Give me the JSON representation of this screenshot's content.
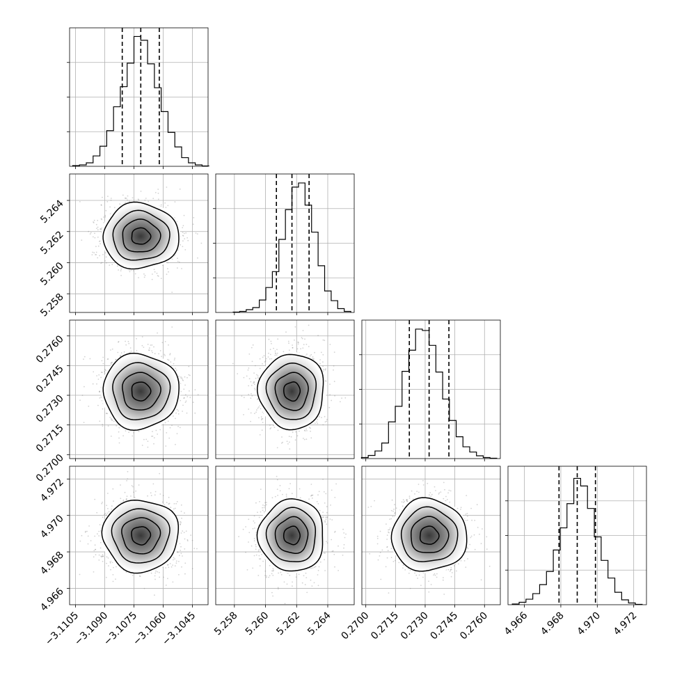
{
  "chart_data": {
    "type": "corner",
    "title": "",
    "parameters": [
      {
        "index": 0,
        "mean": -3.10715,
        "sd": 0.00097,
        "range": [
          -3.1108,
          -3.1037
        ],
        "ticks": [
          -3.1105,
          -3.109,
          -3.1075,
          -3.106,
          -3.1045
        ],
        "tick_labels": [
          "−3.1105",
          "−3.1090",
          "−3.1075",
          "−3.1060",
          "−3.1045"
        ],
        "quantiles": [
          -3.1081,
          -3.10715,
          -3.1062
        ],
        "hist_counts": [
          2,
          4,
          10,
          30,
          58,
          103,
          172,
          230,
          298,
          375,
          364,
          296,
          227,
          158,
          98,
          56,
          25,
          10,
          4,
          1
        ]
      },
      {
        "index": 1,
        "mean": 5.2617,
        "sd": 0.00105,
        "range": [
          5.2568,
          5.2657
        ],
        "ticks": [
          5.258,
          5.26,
          5.262,
          5.264
        ],
        "tick_labels": [
          "5.258",
          "5.260",
          "5.262",
          "5.264"
        ],
        "quantiles": [
          5.2607,
          5.2617,
          5.2628
        ],
        "hist_counts": [
          1,
          3,
          8,
          14,
          36,
          72,
          118,
          211,
          297,
          362,
          374,
          310,
          232,
          135,
          62,
          34,
          11,
          3
        ]
      },
      {
        "index": 2,
        "mean": 0.2732,
        "sd": 0.00095,
        "range": [
          0.2698,
          0.2768
        ],
        "ticks": [
          0.27,
          0.2715,
          0.273,
          0.2745,
          0.276
        ],
        "tick_labels": [
          "0.2700",
          "0.2715",
          "0.2730",
          "0.2745",
          "0.2760"
        ],
        "quantiles": [
          0.2722,
          0.2732,
          0.2742
        ],
        "hist_counts": [
          3,
          9,
          22,
          45,
          106,
          151,
          252,
          313,
          374,
          370,
          327,
          250,
          172,
          110,
          63,
          34,
          19,
          8,
          3,
          1
        ]
      },
      {
        "index": 3,
        "mean": 4.9689,
        "sd": 0.00099,
        "range": [
          4.9651,
          4.9727
        ],
        "ticks": [
          4.966,
          4.968,
          4.97,
          4.972
        ],
        "tick_labels": [
          "4.966",
          "4.968",
          "4.970",
          "4.972"
        ],
        "quantiles": [
          4.9679,
          4.9689,
          4.9699
        ],
        "hist_counts": [
          2,
          7,
          16,
          32,
          58,
          96,
          158,
          222,
          292,
          365,
          343,
          278,
          196,
          128,
          77,
          36,
          14,
          5,
          1
        ]
      }
    ],
    "hist_ylim": [
      0,
      400
    ],
    "hist_yticks": [
      100,
      200,
      300
    ],
    "contour_levels_sigma": [
      0.5,
      1.0,
      1.5,
      2.0
    ],
    "n_scatter_points": 1500,
    "grid": true,
    "colors": {
      "line": "#000000",
      "grid": "#b0b0b0",
      "scatter": "#7f7f7f",
      "density": "#000000"
    }
  }
}
